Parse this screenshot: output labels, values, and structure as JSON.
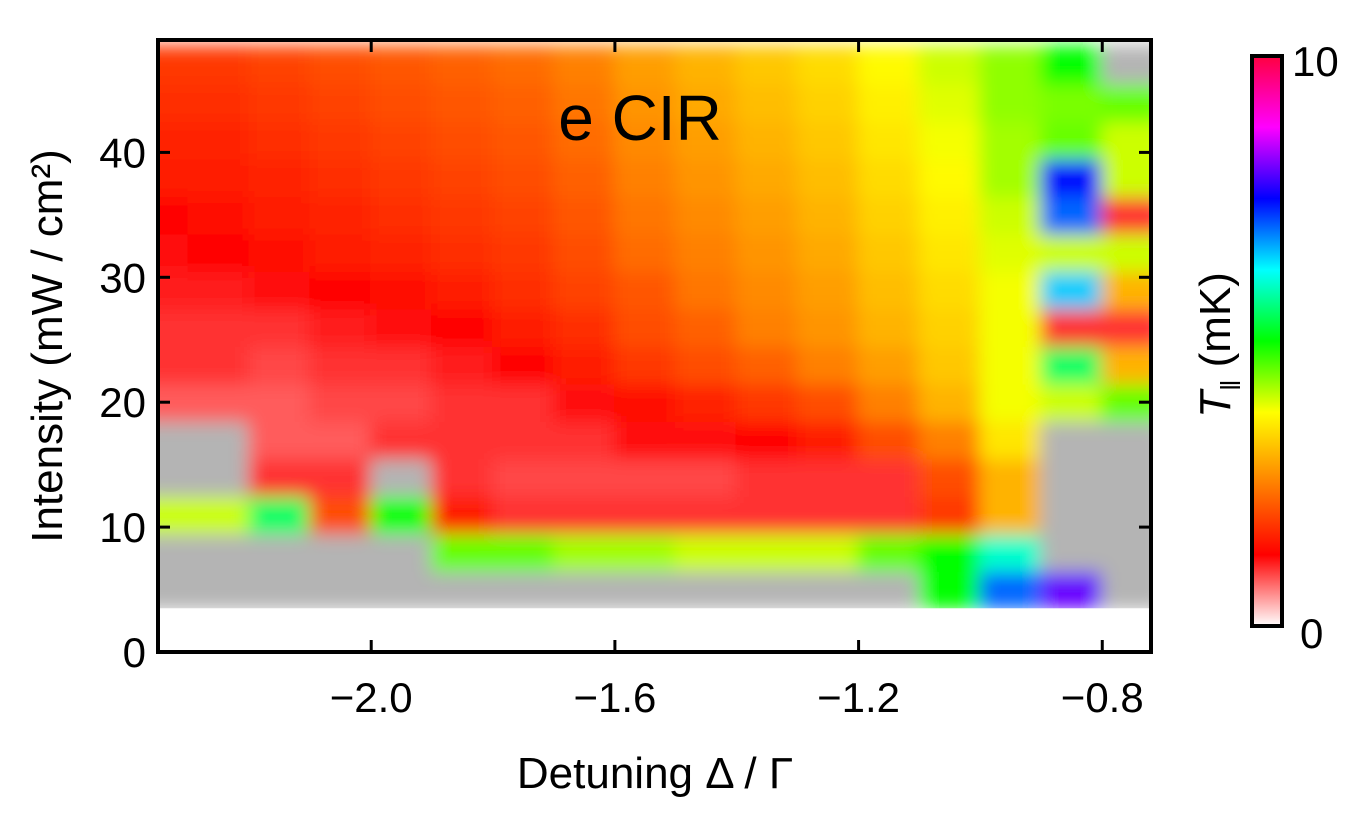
{
  "chart_data": {
    "type": "heatmap",
    "title": "e CIR",
    "xlabel": "Detuning Δ / Γ",
    "ylabel": "Intensity (mW / cm²)",
    "xlim": [
      -2.35,
      -0.72
    ],
    "ylim": [
      0,
      49
    ],
    "x_ticks": [
      -2.0,
      -1.6,
      -1.2,
      -0.8
    ],
    "x_tick_labels": [
      "−2.0",
      "−1.6",
      "−1.2",
      "−0.8"
    ],
    "y_ticks": [
      0,
      10,
      20,
      30,
      40
    ],
    "y_tick_labels": [
      "0",
      "10",
      "20",
      "30",
      "40"
    ],
    "colorbar": {
      "label": "T",
      "label_subscript": "‖",
      "unit": "(mK)",
      "min": 0,
      "max": 10,
      "tick_labels": [
        "0",
        "10"
      ],
      "colors": [
        "#ffffff",
        "#ff0000",
        "#ff8000",
        "#ffff00",
        "#00ff00",
        "#00ffff",
        "#0000ff",
        "#ff00ff",
        "#ff0040"
      ]
    },
    "no_data_color": "#b4b4b4",
    "x": [
      -2.35,
      -2.25,
      -2.15,
      -2.05,
      -1.95,
      -1.85,
      -1.75,
      -1.65,
      -1.55,
      -1.45,
      -1.35,
      -1.25,
      -1.15,
      -1.05,
      -0.95,
      -0.85,
      -0.75
    ],
    "y": [
      5,
      8,
      11,
      14,
      17,
      20,
      23,
      26,
      29,
      32,
      35,
      38,
      41,
      44,
      47
    ],
    "z": [
      [
        null,
        null,
        null,
        null,
        null,
        null,
        null,
        null,
        null,
        null,
        null,
        null,
        null,
        5.0,
        7.0,
        8.0,
        null
      ],
      [
        null,
        null,
        null,
        null,
        null,
        4.5,
        4.5,
        4.2,
        4.2,
        4.0,
        4.0,
        4.0,
        4.5,
        5.0,
        6.0,
        null,
        null
      ],
      [
        4.0,
        4.0,
        5.5,
        2.0,
        5.0,
        1.5,
        1.0,
        1.0,
        1.0,
        1.0,
        1.0,
        1.0,
        1.0,
        1.8,
        3.0,
        null,
        null
      ],
      [
        null,
        null,
        1.0,
        1.0,
        null,
        1.0,
        0.9,
        0.9,
        0.9,
        0.9,
        1.0,
        1.0,
        1.0,
        2.0,
        3.0,
        null,
        null
      ],
      [
        null,
        null,
        0.8,
        0.8,
        1.0,
        1.0,
        1.0,
        1.0,
        1.2,
        1.2,
        1.3,
        1.5,
        2.0,
        2.5,
        3.5,
        null,
        null
      ],
      [
        0.8,
        0.8,
        0.8,
        0.9,
        0.9,
        1.0,
        1.0,
        1.2,
        1.4,
        1.6,
        1.8,
        2.0,
        2.5,
        3.0,
        3.8,
        4.0,
        4.5
      ],
      [
        1.0,
        1.0,
        0.9,
        1.0,
        1.0,
        1.1,
        1.3,
        1.5,
        1.8,
        2.0,
        2.2,
        2.5,
        2.8,
        3.2,
        3.8,
        5.5,
        3.0
      ],
      [
        1.0,
        1.0,
        1.0,
        1.1,
        1.2,
        1.3,
        1.5,
        1.7,
        2.0,
        2.2,
        2.5,
        2.7,
        3.0,
        3.3,
        3.8,
        1.0,
        1.0
      ],
      [
        1.1,
        1.1,
        1.2,
        1.3,
        1.4,
        1.5,
        1.7,
        1.9,
        2.1,
        2.4,
        2.6,
        2.8,
        3.1,
        3.4,
        3.8,
        6.5,
        3.0
      ],
      [
        1.2,
        1.3,
        1.4,
        1.5,
        1.6,
        1.7,
        1.8,
        2.0,
        2.3,
        2.5,
        2.7,
        2.9,
        3.2,
        3.5,
        3.9,
        4.0,
        4.0
      ],
      [
        1.3,
        1.4,
        1.5,
        1.6,
        1.7,
        1.8,
        1.9,
        2.1,
        2.4,
        2.6,
        2.8,
        3.0,
        3.3,
        3.6,
        4.0,
        7.0,
        1.0
      ],
      [
        1.5,
        1.5,
        1.6,
        1.7,
        1.8,
        1.9,
        2.0,
        2.2,
        2.5,
        2.7,
        2.9,
        3.1,
        3.4,
        3.7,
        4.2,
        7.5,
        4.0
      ],
      [
        1.6,
        1.6,
        1.7,
        1.8,
        1.9,
        2.0,
        2.1,
        2.3,
        2.6,
        2.8,
        3.0,
        3.2,
        3.5,
        3.8,
        4.2,
        4.5,
        4.0
      ],
      [
        1.7,
        1.7,
        1.8,
        1.9,
        2.0,
        2.1,
        2.2,
        2.4,
        2.7,
        2.9,
        3.1,
        3.3,
        3.6,
        3.9,
        4.3,
        4.4,
        4.5
      ],
      [
        1.8,
        1.8,
        1.9,
        2.0,
        2.1,
        2.2,
        2.3,
        2.5,
        2.8,
        3.0,
        3.2,
        3.4,
        3.7,
        4.0,
        4.3,
        5.0,
        null
      ]
    ]
  }
}
